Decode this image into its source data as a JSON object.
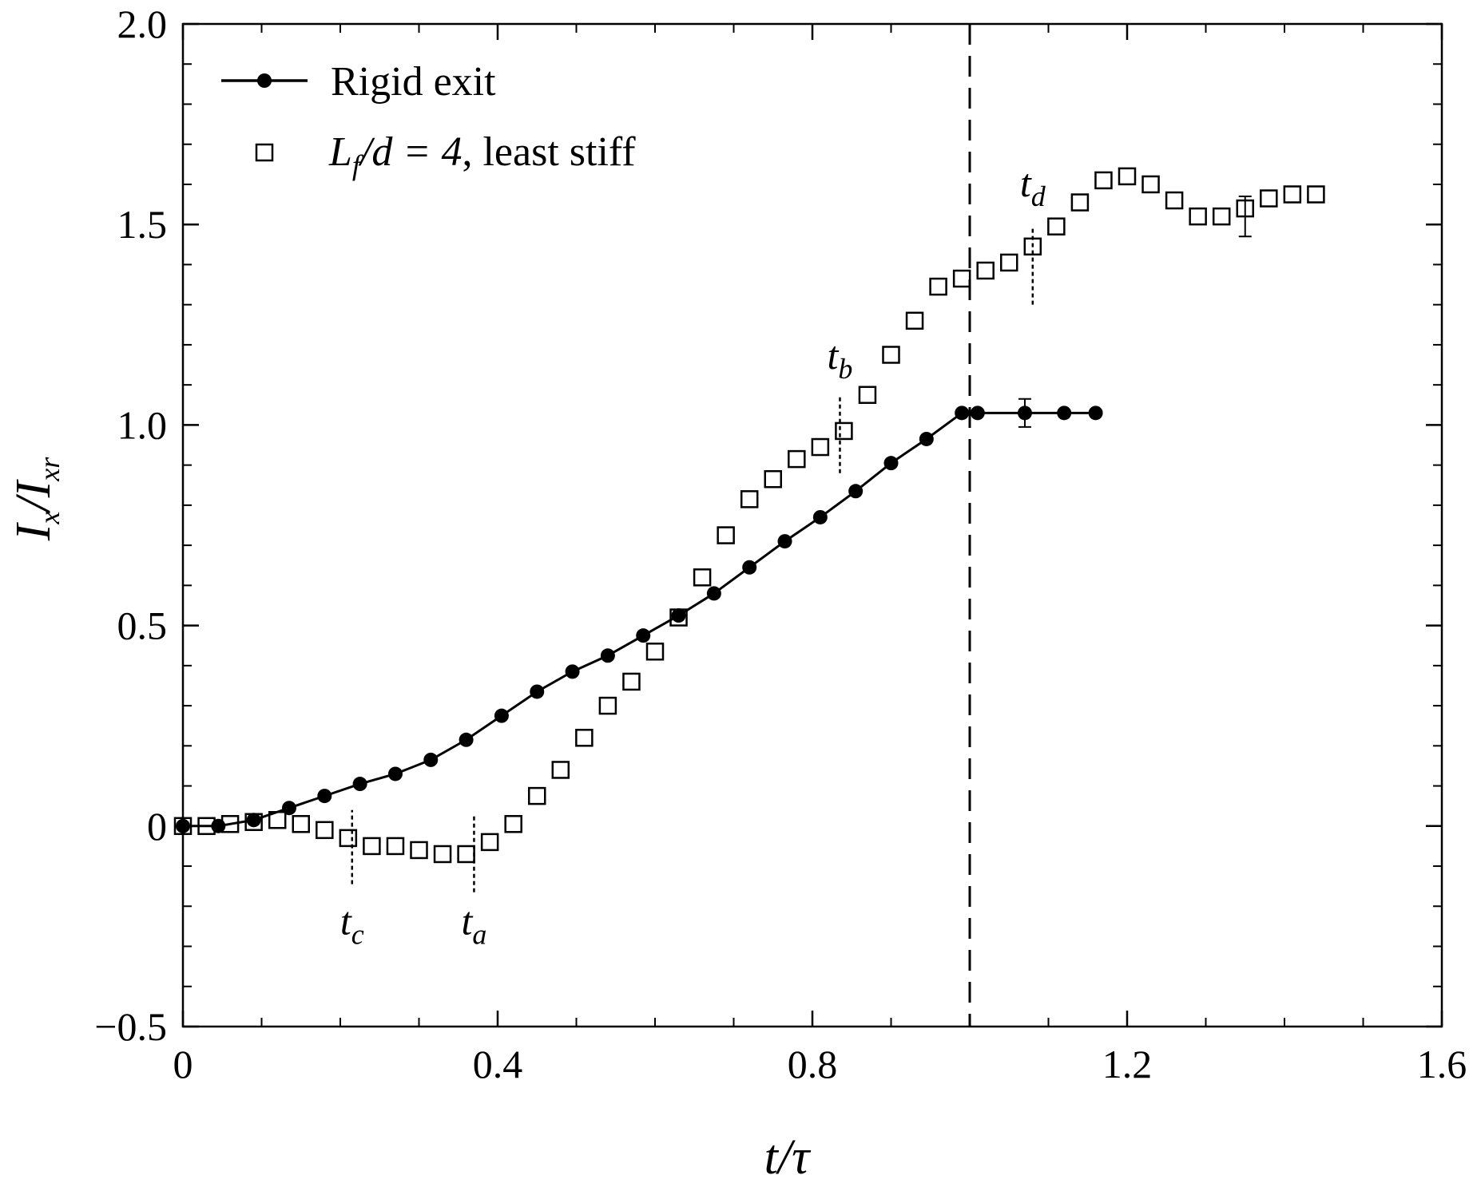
{
  "chart_data": {
    "type": "scatter",
    "xlabel": "t/τ",
    "ylabel": "I_x/I_xr",
    "xlim": [
      0,
      1.6
    ],
    "ylim": [
      -0.5,
      2.0
    ],
    "x_ticks": [
      {
        "value": 0,
        "label": "0"
      },
      {
        "value": 0.4,
        "label": "0.4"
      },
      {
        "value": 0.8,
        "label": "0.8"
      },
      {
        "value": 1.2,
        "label": "1.2"
      },
      {
        "value": 1.6,
        "label": "1.6"
      }
    ],
    "y_ticks": [
      {
        "value": -0.5,
        "label": "−0.5"
      },
      {
        "value": 0,
        "label": "0"
      },
      {
        "value": 0.5,
        "label": "0.5"
      },
      {
        "value": 1.0,
        "label": "1.0"
      },
      {
        "value": 1.5,
        "label": "1.5"
      },
      {
        "value": 2.0,
        "label": "2.0"
      }
    ],
    "x_minor_step": 0.1,
    "y_minor_step": 0.1,
    "grid": false,
    "legend_position": "top-left",
    "vertical_reference_line": {
      "x": 1.0,
      "style": "dashed"
    },
    "series": [
      {
        "name": "Rigid exit",
        "marker": "filled-circle",
        "line": true,
        "color": "#000000",
        "x": [
          0.0,
          0.045,
          0.09,
          0.135,
          0.18,
          0.225,
          0.27,
          0.315,
          0.36,
          0.405,
          0.45,
          0.495,
          0.54,
          0.585,
          0.63,
          0.675,
          0.72,
          0.765,
          0.81,
          0.855,
          0.9,
          0.945,
          0.99,
          1.01,
          1.07,
          1.12,
          1.16
        ],
        "y": [
          0.0,
          0.0,
          0.015,
          0.045,
          0.075,
          0.105,
          0.13,
          0.165,
          0.215,
          0.275,
          0.335,
          0.385,
          0.425,
          0.475,
          0.525,
          0.58,
          0.645,
          0.71,
          0.77,
          0.835,
          0.905,
          0.965,
          1.03,
          1.03,
          1.03,
          1.03,
          1.03
        ],
        "error_bar": {
          "x": 1.07,
          "y": 1.03,
          "err": 0.035
        }
      },
      {
        "name": "L_f/d = 4, least stiff",
        "marker": "open-square",
        "line": false,
        "color": "#000000",
        "x": [
          0.0,
          0.03,
          0.06,
          0.09,
          0.12,
          0.15,
          0.18,
          0.21,
          0.24,
          0.27,
          0.3,
          0.33,
          0.36,
          0.39,
          0.42,
          0.45,
          0.48,
          0.51,
          0.54,
          0.57,
          0.6,
          0.63,
          0.66,
          0.69,
          0.72,
          0.75,
          0.78,
          0.81,
          0.84,
          0.87,
          0.9,
          0.93,
          0.96,
          0.99,
          1.02,
          1.05,
          1.08,
          1.11,
          1.14,
          1.17,
          1.2,
          1.23,
          1.26,
          1.29,
          1.32,
          1.35,
          1.38,
          1.41,
          1.44
        ],
        "y": [
          0.0,
          0.0,
          0.005,
          0.01,
          0.015,
          0.005,
          -0.01,
          -0.03,
          -0.05,
          -0.05,
          -0.06,
          -0.07,
          -0.07,
          -0.04,
          0.005,
          0.075,
          0.14,
          0.22,
          0.3,
          0.36,
          0.435,
          0.52,
          0.62,
          0.725,
          0.815,
          0.865,
          0.915,
          0.945,
          0.985,
          1.075,
          1.175,
          1.26,
          1.345,
          1.365,
          1.385,
          1.405,
          1.445,
          1.495,
          1.555,
          1.61,
          1.62,
          1.6,
          1.56,
          1.52,
          1.52,
          1.54,
          1.565,
          1.575,
          1.575
        ],
        "error_bar": {
          "x": 1.35,
          "y": 1.52,
          "err": 0.05
        }
      }
    ],
    "annotations": [
      {
        "base": "t",
        "subscript": "c",
        "x": 0.215,
        "y_from": -0.145,
        "y_to": 0.04,
        "label_y": -0.27
      },
      {
        "base": "t",
        "subscript": "a",
        "x": 0.37,
        "y_from": -0.165,
        "y_to": 0.03,
        "label_y": -0.27
      },
      {
        "base": "t",
        "subscript": "b",
        "x": 0.835,
        "y_from": 0.88,
        "y_to": 1.07,
        "label_y": 1.14
      },
      {
        "base": "t",
        "subscript": "d",
        "x": 1.08,
        "y_from": 1.3,
        "y_to": 1.49,
        "label_y": 1.57
      }
    ]
  },
  "legend": {
    "entry1_label": "Rigid exit",
    "entry2_label": ", least stiff",
    "entry2_math": {
      "base": "L",
      "sub": "f",
      "rest": "/d = 4"
    }
  },
  "axis_text": {
    "x_num": "t",
    "x_sep": "/",
    "x_den": "τ",
    "y_num": "I",
    "y_num_sub": "x",
    "y_sep": "/",
    "y_den": "I",
    "y_den_sub": "xr"
  }
}
